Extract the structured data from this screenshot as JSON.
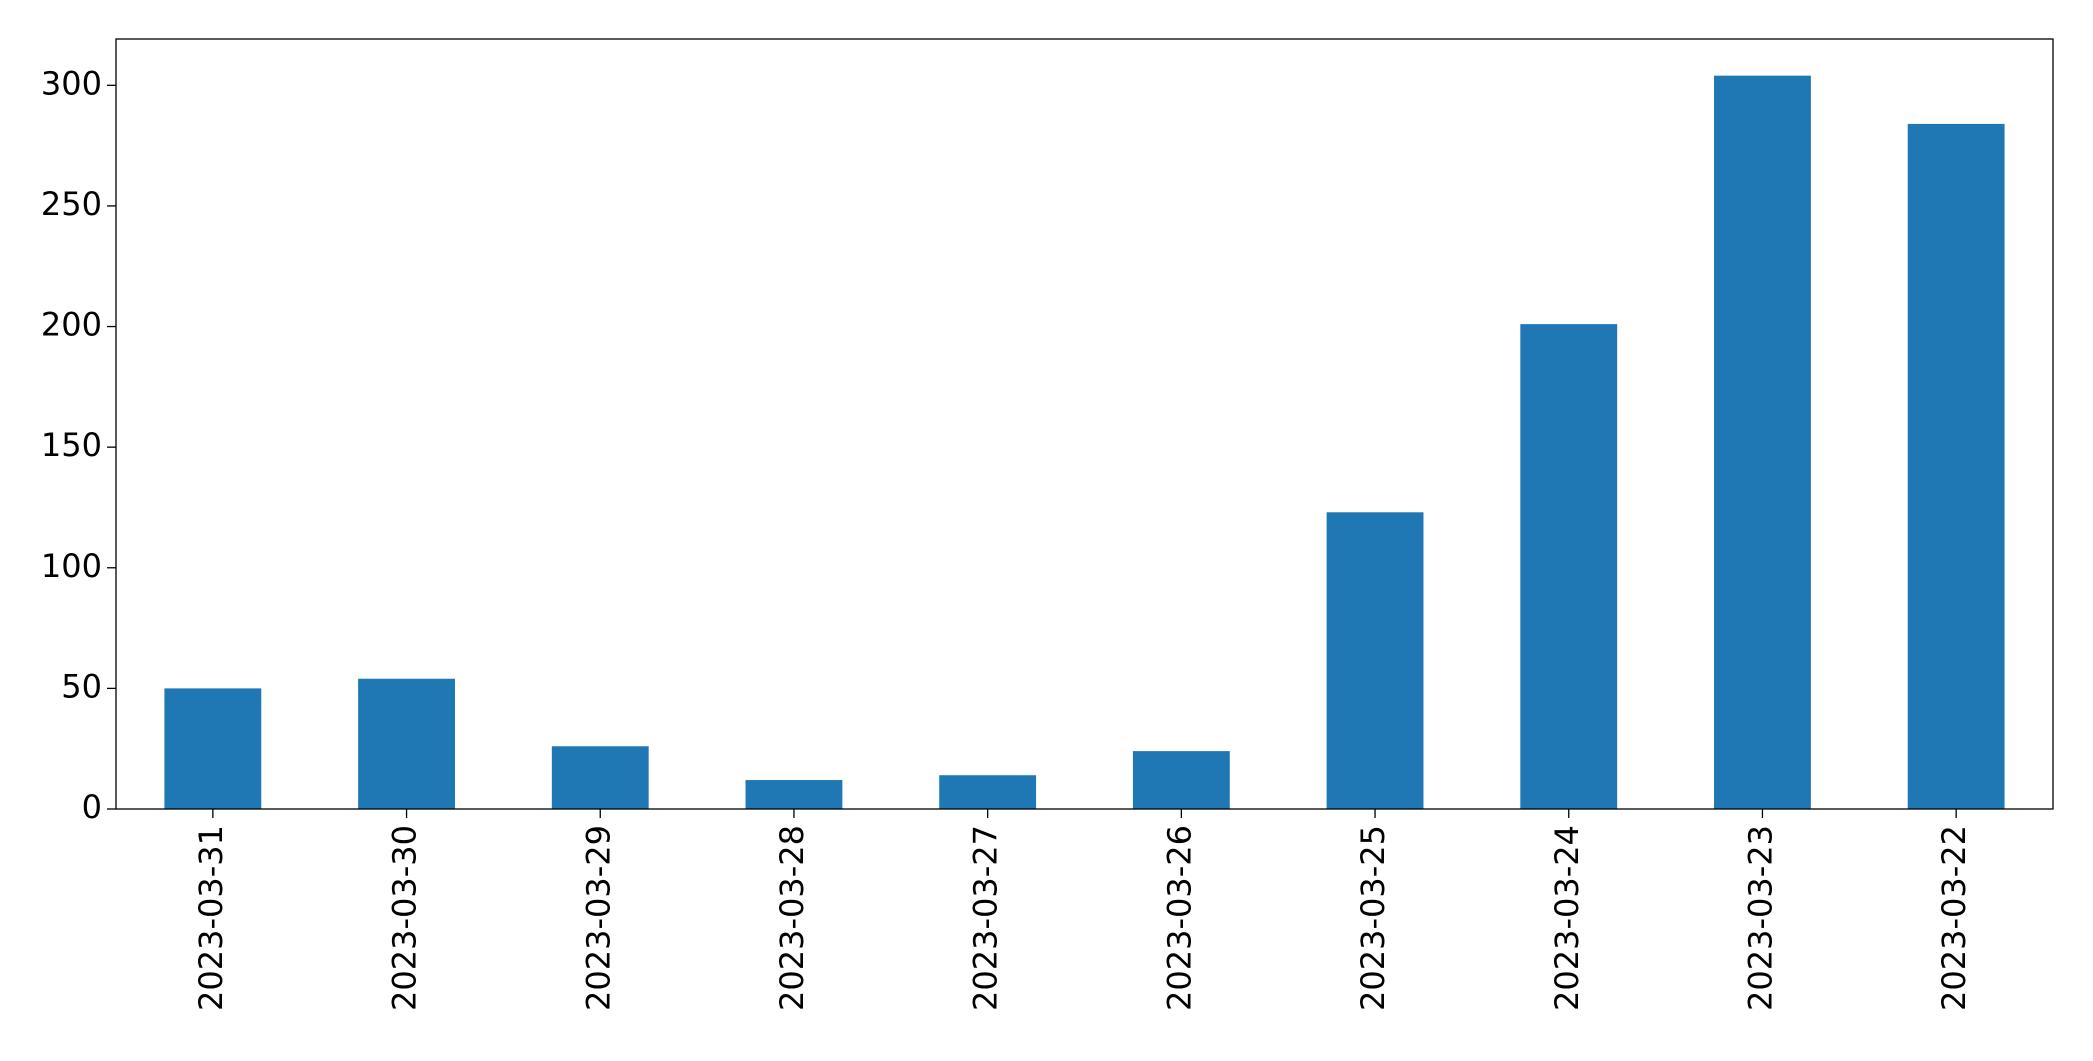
{
  "chart_data": {
    "type": "bar",
    "categories": [
      "2023-03-31",
      "2023-03-30",
      "2023-03-29",
      "2023-03-28",
      "2023-03-27",
      "2023-03-26",
      "2023-03-25",
      "2023-03-24",
      "2023-03-23",
      "2023-03-22"
    ],
    "values": [
      50,
      54,
      26,
      12,
      14,
      24,
      123,
      201,
      304,
      284
    ],
    "color": "#1f77b4",
    "ylim": [
      0,
      319.2
    ],
    "yticks": [
      0,
      50,
      100,
      150,
      200,
      250,
      300
    ],
    "grid": false
  }
}
